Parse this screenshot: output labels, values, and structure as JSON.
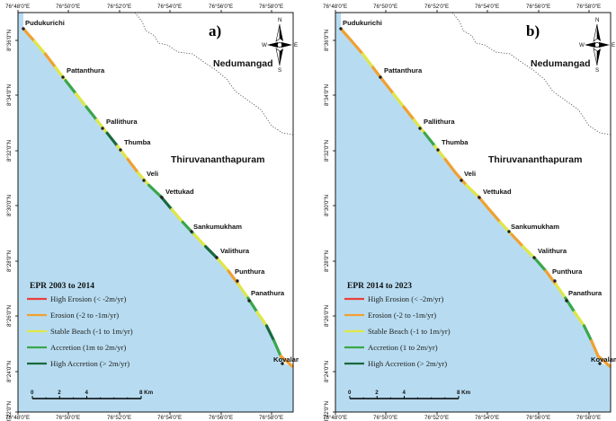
{
  "longitude_ticks": [
    "76°48'0\"E",
    "76°50'0\"E",
    "76°52'0\"E",
    "76°54'0\"E",
    "76°56'0\"E",
    "76°58'0\"E"
  ],
  "latitude_ticks": [
    "8°36'0\"N",
    "8°34'0\"N",
    "8°32'0\"N",
    "8°30'0\"N",
    "8°28'0\"N",
    "8°26'0\"N",
    "8°24'0\"N",
    "8°22'0\"N"
  ],
  "districts": {
    "north": "Nedumangad",
    "south": "Thiruvananthapuram"
  },
  "places": [
    "Pudukurichi",
    "Pattanthura",
    "Pallithura",
    "Thumba",
    "Veli",
    "Vettukad",
    "Sankumukham",
    "Valithura",
    "Punthura",
    "Panathura",
    "Kovalam"
  ],
  "north_arrow": {
    "n": "N",
    "s": "S",
    "e": "E",
    "w": "W"
  },
  "scale_bar": {
    "labels": [
      "0",
      "2",
      "4",
      "8 Km"
    ]
  },
  "colors": {
    "sea": "#b7dcf1",
    "land": "#ffffff",
    "high_erosion": "#e8413c",
    "erosion": "#f0a030",
    "stable": "#e0e645",
    "accretion": "#3aa64a",
    "high_accretion": "#18693c"
  },
  "panels": [
    {
      "tag": "a)",
      "legend": {
        "title": "EPR 2003 to 2014",
        "items": [
          {
            "label": "High Erosion (< -2m/yr)",
            "color": "#e8413c"
          },
          {
            "label": "Erosion (-2 to -1m/yr)",
            "color": "#f0a030"
          },
          {
            "label": "Stable Beach (-1 to 1m/yr)",
            "color": "#e0e645"
          },
          {
            "label": "Accretion (1m to 2m/yr)",
            "color": "#3aa64a"
          },
          {
            "label": "High Accretion (> 2m/yr)",
            "color": "#18693c"
          }
        ]
      },
      "coast_classes": [
        "erosion",
        "stable",
        "erosion",
        "stable",
        "accretion",
        "stable",
        "accretion",
        "stable",
        "high_accretion",
        "stable",
        "erosion",
        "stable",
        "accretion",
        "high_accretion",
        "stable",
        "accretion",
        "stable",
        "high_accretion",
        "stable",
        "erosion",
        "stable",
        "accretion",
        "stable",
        "high_accretion",
        "accretion",
        "erosion"
      ]
    },
    {
      "tag": "b)",
      "legend": {
        "title": "EPR 2014 to 2023",
        "items": [
          {
            "label": "High Erosion (< -2m/yr)",
            "color": "#e8413c"
          },
          {
            "label": "Erosion (-2 to -1m/yr)",
            "color": "#f0a030"
          },
          {
            "label": "Stable Beach (-1 to 1m/yr)",
            "color": "#e0e645"
          },
          {
            "label": "Accretion (1 to 2m/yr)",
            "color": "#3aa64a"
          },
          {
            "label": "High Accretion (> 2m/yr)",
            "color": "#18693c"
          }
        ]
      },
      "coast_classes": [
        "erosion",
        "erosion",
        "stable",
        "erosion",
        "erosion",
        "stable",
        "erosion",
        "stable",
        "accretion",
        "stable",
        "erosion",
        "erosion",
        "stable",
        "erosion",
        "erosion",
        "stable",
        "erosion",
        "stable",
        "accretion",
        "erosion",
        "stable",
        "accretion",
        "stable",
        "accretion",
        "erosion",
        "erosion"
      ]
    }
  ]
}
